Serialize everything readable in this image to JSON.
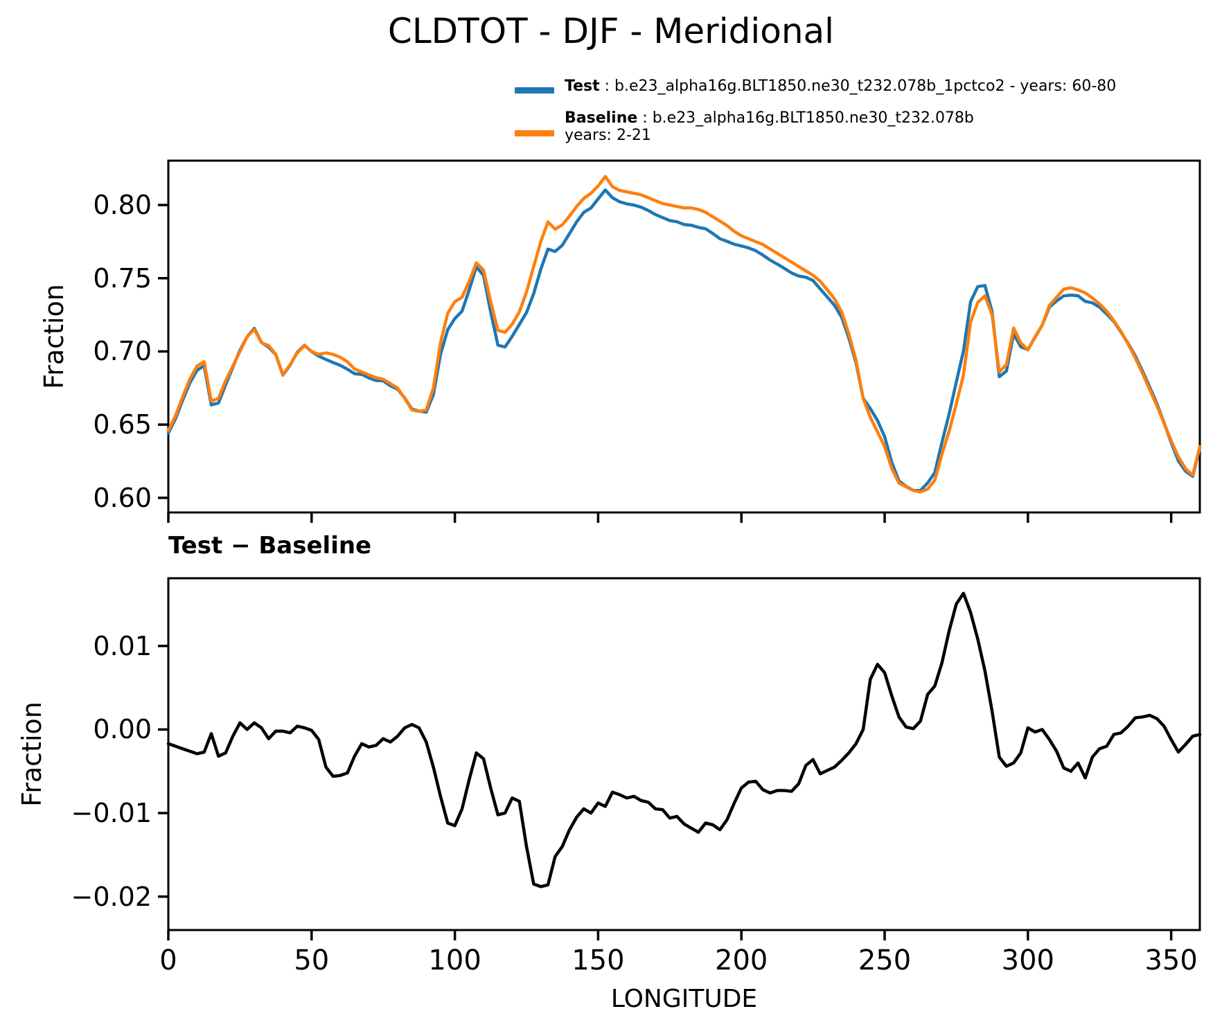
{
  "title": "CLDTOT - DJF - Meridional",
  "legend": {
    "test": {
      "name": "Test",
      "desc": " : b.e23_alpha16g.BLT1850.ne30_t232.078b_1pctco2 - years: 60-80",
      "color": "#1f77b4"
    },
    "baseline": {
      "name": "Baseline",
      "desc": " : b.e23_alpha16g.BLT1850.ne30_t232.078b",
      "desc2": "years: 2-21",
      "color": "#ff7f0e"
    }
  },
  "chart_data": [
    {
      "type": "line",
      "title": "CLDTOT - DJF - Meridional",
      "ylabel": "Fraction",
      "xlabel": "",
      "xlim": [
        0,
        360
      ],
      "ylim": [
        0.59,
        0.8303
      ],
      "x_start": 0,
      "x_step": 2.5,
      "xticks": [
        0,
        50,
        100,
        150,
        200,
        250,
        300,
        350
      ],
      "xtick_labels": [
        "0",
        "50",
        "100",
        "150",
        "200",
        "250",
        "300",
        "350"
      ],
      "show_xtick_labels": false,
      "yticks": [
        0.6,
        0.65,
        0.7,
        0.75,
        0.8
      ],
      "ytick_labels": [
        "0.60",
        "0.65",
        "0.70",
        "0.75",
        "0.80"
      ],
      "grid": false,
      "legend_position": "top-right-above-axes",
      "series": [
        {
          "name": "Test",
          "color": "#1f77b4",
          "values": [
            0.6443,
            0.654,
            0.6667,
            0.6784,
            0.6871,
            0.6903,
            0.6635,
            0.6648,
            0.6772,
            0.6892,
            0.7008,
            0.71,
            0.7158,
            0.7062,
            0.7029,
            0.6978,
            0.6838,
            0.6906,
            0.6994,
            0.7042,
            0.6999,
            0.6968,
            0.6945,
            0.6924,
            0.6905,
            0.6878,
            0.6848,
            0.6843,
            0.6819,
            0.6801,
            0.6799,
            0.6765,
            0.6742,
            0.6682,
            0.6606,
            0.6592,
            0.6585,
            0.6705,
            0.698,
            0.7148,
            0.7225,
            0.7275,
            0.742,
            0.7577,
            0.752,
            0.727,
            0.7043,
            0.703,
            0.7103,
            0.7184,
            0.7265,
            0.7395,
            0.7562,
            0.7699,
            0.7683,
            0.7725,
            0.7805,
            0.7885,
            0.795,
            0.798,
            0.8042,
            0.8103,
            0.805,
            0.8022,
            0.8008,
            0.8,
            0.7985,
            0.7963,
            0.7935,
            0.7914,
            0.7894,
            0.7886,
            0.7867,
            0.7862,
            0.7847,
            0.7838,
            0.7806,
            0.777,
            0.7752,
            0.7732,
            0.772,
            0.7707,
            0.7688,
            0.7658,
            0.7624,
            0.7597,
            0.7567,
            0.7536,
            0.7515,
            0.7507,
            0.7484,
            0.7427,
            0.7371,
            0.7315,
            0.7233,
            0.7092,
            0.6923,
            0.668,
            0.661,
            0.6528,
            0.6418,
            0.624,
            0.6115,
            0.6078,
            0.6051,
            0.605,
            0.6102,
            0.6172,
            0.638,
            0.6573,
            0.679,
            0.7003,
            0.734,
            0.7443,
            0.745,
            0.7272,
            0.6827,
            0.6866,
            0.712,
            0.7032,
            0.7012,
            0.7097,
            0.718,
            0.7303,
            0.7344,
            0.7379,
            0.7385,
            0.738,
            0.7342,
            0.7332,
            0.7302,
            0.7255,
            0.7204,
            0.7131,
            0.7054,
            0.6969,
            0.6865,
            0.6757,
            0.6643,
            0.6514,
            0.6378,
            0.6253,
            0.6182,
            0.6147,
            0.6344
          ]
        },
        {
          "name": "Baseline",
          "color": "#ff7f0e",
          "values": [
            0.646,
            0.656,
            0.669,
            0.681,
            0.69,
            0.693,
            0.666,
            0.668,
            0.68,
            0.69,
            0.7,
            0.71,
            0.715,
            0.706,
            0.704,
            0.698,
            0.684,
            0.691,
            0.699,
            0.704,
            0.7,
            0.698,
            0.699,
            0.698,
            0.696,
            0.693,
            0.688,
            0.686,
            0.684,
            0.682,
            0.681,
            0.678,
            0.675,
            0.668,
            0.66,
            0.659,
            0.66,
            0.675,
            0.706,
            0.726,
            0.734,
            0.737,
            0.748,
            0.7605,
            0.7555,
            0.734,
            0.7145,
            0.713,
            0.7185,
            0.727,
            0.7405,
            0.758,
            0.775,
            0.7885,
            0.7835,
            0.7865,
            0.7925,
            0.799,
            0.8045,
            0.808,
            0.813,
            0.8195,
            0.8125,
            0.81,
            0.809,
            0.808,
            0.807,
            0.805,
            0.803,
            0.801,
            0.8,
            0.799,
            0.798,
            0.798,
            0.797,
            0.795,
            0.792,
            0.789,
            0.786,
            0.782,
            0.779,
            0.777,
            0.775,
            0.773,
            0.77,
            0.767,
            0.764,
            0.761,
            0.758,
            0.755,
            0.752,
            0.748,
            0.742,
            0.736,
            0.727,
            0.712,
            0.694,
            0.668,
            0.655,
            0.645,
            0.635,
            0.62,
            0.61,
            0.6075,
            0.605,
            0.604,
            0.606,
            0.612,
            0.63,
            0.6455,
            0.664,
            0.684,
            0.72,
            0.7335,
            0.738,
            0.725,
            0.686,
            0.691,
            0.716,
            0.706,
            0.701,
            0.71,
            0.718,
            0.7315,
            0.737,
            0.7425,
            0.7435,
            0.742,
            0.74,
            0.7365,
            0.7325,
            0.7275,
            0.721,
            0.7135,
            0.705,
            0.6955,
            0.685,
            0.674,
            0.663,
            0.651,
            0.639,
            0.628,
            0.62,
            0.6155,
            0.635
          ]
        }
      ]
    },
    {
      "type": "line",
      "title": "Test − Baseline",
      "ylabel": "Fraction",
      "xlabel": "LONGITUDE",
      "xlim": [
        0,
        360
      ],
      "ylim": [
        -0.024,
        0.0181
      ],
      "x_start": 0,
      "x_step": 2.5,
      "xticks": [
        0,
        50,
        100,
        150,
        200,
        250,
        300,
        350
      ],
      "xtick_labels": [
        "0",
        "50",
        "100",
        "150",
        "200",
        "250",
        "300",
        "350"
      ],
      "show_xtick_labels": true,
      "yticks": [
        -0.02,
        -0.01,
        0.0,
        0.01
      ],
      "ytick_labels": [
        "−0.02",
        "−0.01",
        "0.00",
        "0.01"
      ],
      "grid": false,
      "series": [
        {
          "name": "Test − Baseline",
          "color": "#000000",
          "values": [
            -0.0017,
            -0.002,
            -0.0023,
            -0.0026,
            -0.0029,
            -0.0027,
            -0.0005,
            -0.0032,
            -0.0028,
            -0.0008,
            0.0008,
            0.0,
            0.0008,
            0.0002,
            -0.0011,
            -0.0002,
            -0.0002,
            -0.0004,
            0.0004,
            0.0002,
            -0.0001,
            -0.0012,
            -0.0045,
            -0.0056,
            -0.0055,
            -0.0052,
            -0.0032,
            -0.0017,
            -0.0021,
            -0.0019,
            -0.0011,
            -0.0015,
            -0.0008,
            0.0002,
            0.0006,
            0.0002,
            -0.0015,
            -0.0045,
            -0.008,
            -0.0112,
            -0.0115,
            -0.0095,
            -0.006,
            -0.0028,
            -0.0035,
            -0.007,
            -0.0102,
            -0.01,
            -0.0082,
            -0.0086,
            -0.014,
            -0.0185,
            -0.0188,
            -0.0186,
            -0.0152,
            -0.014,
            -0.012,
            -0.0105,
            -0.0095,
            -0.01,
            -0.0088,
            -0.0092,
            -0.0075,
            -0.0078,
            -0.0082,
            -0.008,
            -0.0085,
            -0.0087,
            -0.0095,
            -0.0096,
            -0.0106,
            -0.0104,
            -0.0113,
            -0.0118,
            -0.0123,
            -0.0112,
            -0.0114,
            -0.012,
            -0.0108,
            -0.0088,
            -0.007,
            -0.0063,
            -0.0062,
            -0.0072,
            -0.0076,
            -0.0073,
            -0.0073,
            -0.0074,
            -0.0065,
            -0.0043,
            -0.0036,
            -0.0053,
            -0.0049,
            -0.0045,
            -0.0037,
            -0.0028,
            -0.0017,
            0.0,
            0.006,
            0.0078,
            0.0068,
            0.004,
            0.0015,
            0.0003,
            0.0001,
            0.001,
            0.0042,
            0.0052,
            0.008,
            0.0118,
            0.015,
            0.0163,
            0.014,
            0.0108,
            0.007,
            0.0022,
            -0.0033,
            -0.0044,
            -0.004,
            -0.0028,
            0.0002,
            -0.0003,
            0.0,
            -0.0012,
            -0.0026,
            -0.0046,
            -0.005,
            -0.004,
            -0.0058,
            -0.0033,
            -0.0023,
            -0.002,
            -0.0006,
            -0.0004,
            0.0004,
            0.0014,
            0.0015,
            0.0017,
            0.0013,
            0.0004,
            -0.0012,
            -0.0027,
            -0.0018,
            -0.0008,
            -0.0006
          ]
        }
      ]
    }
  ]
}
